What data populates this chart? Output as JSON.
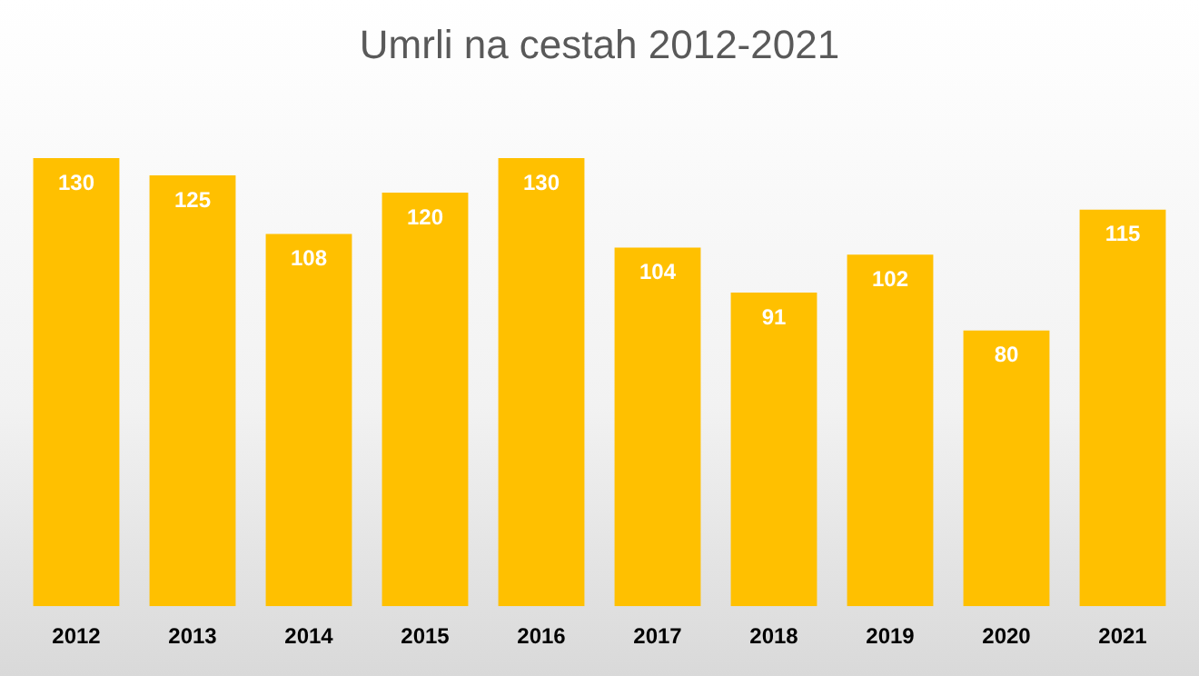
{
  "chart_data": {
    "type": "bar",
    "title": "Umrli na cestah 2012-2021",
    "categories": [
      "2012",
      "2013",
      "2014",
      "2015",
      "2016",
      "2017",
      "2018",
      "2019",
      "2020",
      "2021"
    ],
    "values": [
      130,
      125,
      108,
      120,
      130,
      104,
      91,
      102,
      80,
      115
    ],
    "color": "#ffc000",
    "data_labels": true,
    "grid": false,
    "legend": false,
    "tick_labels": "x"
  }
}
